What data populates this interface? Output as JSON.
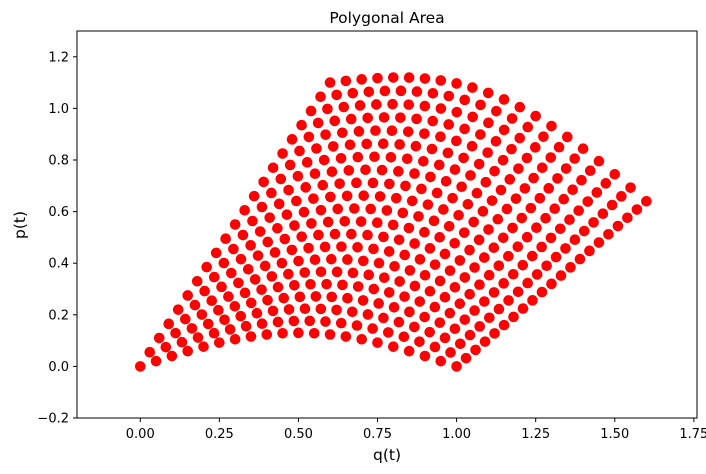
{
  "chart_data": {
    "type": "scatter",
    "title": "Polygonal Area",
    "xlabel": "q(t)",
    "ylabel": "p(t)",
    "xlim": [
      -0.2,
      1.76
    ],
    "ylim": [
      -0.2,
      1.3
    ],
    "xticks": [
      "0.00",
      "0.25",
      "0.50",
      "0.75",
      "1.00",
      "1.25",
      "1.50",
      "1.75"
    ],
    "yticks": [
      "−0.2",
      "0.0",
      "0.2",
      "0.4",
      "0.6",
      "0.8",
      "1.0",
      "1.2"
    ],
    "xtick_values": [
      0,
      0.25,
      0.5,
      0.75,
      1.0,
      1.25,
      1.5,
      1.75
    ],
    "ytick_values": [
      -0.2,
      0,
      0.2,
      0.4,
      0.6,
      0.8,
      1.0,
      1.2
    ],
    "grid": false,
    "point_color": "#ff0000",
    "series": [
      {
        "grid_rows": 21,
        "grid_cols": 21,
        "corners": {
          "origin": [
            0.0,
            0.0
          ],
          "end_s_only": [
            1.0,
            0.0
          ],
          "end_r_only": [
            0.6,
            1.1
          ],
          "end_both": [
            1.6,
            0.64
          ]
        }
      }
    ]
  }
}
